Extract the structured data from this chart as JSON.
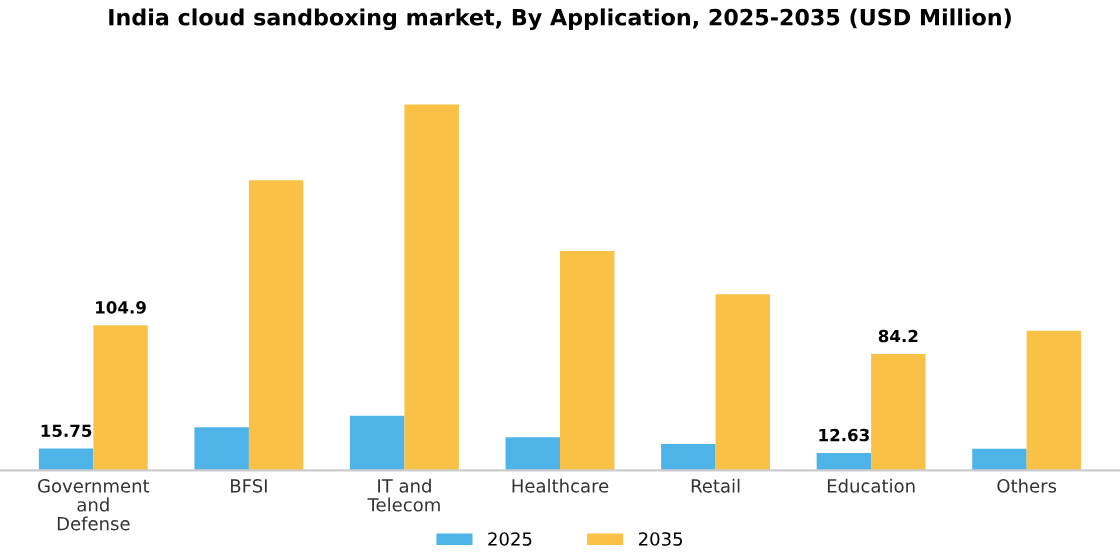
{
  "chart_data": {
    "type": "bar",
    "title": "India cloud sandboxing market, By Application, 2025-2035 (USD Million)",
    "categories": [
      "Government\nand\nDefense",
      "BFSI",
      "IT and\nTelecom",
      "Healthcare",
      "Retail",
      "Education",
      "Others"
    ],
    "series": [
      {
        "name": "2025",
        "color": "#4eb3e6",
        "values": [
          15.75,
          31.2,
          39.5,
          23.9,
          19.0,
          12.63,
          15.6
        ],
        "value_labels": [
          "15.75",
          null,
          null,
          null,
          null,
          "12.63",
          null
        ]
      },
      {
        "name": "2035",
        "color": "#f9c146",
        "values": [
          104.9,
          209.8,
          264.5,
          158.6,
          127.4,
          84.2,
          101
        ],
        "value_labels": [
          "104.9",
          null,
          null,
          null,
          null,
          "84.2",
          null
        ]
      }
    ],
    "legend": "bottom",
    "grid": false,
    "tick_labels": "x"
  }
}
